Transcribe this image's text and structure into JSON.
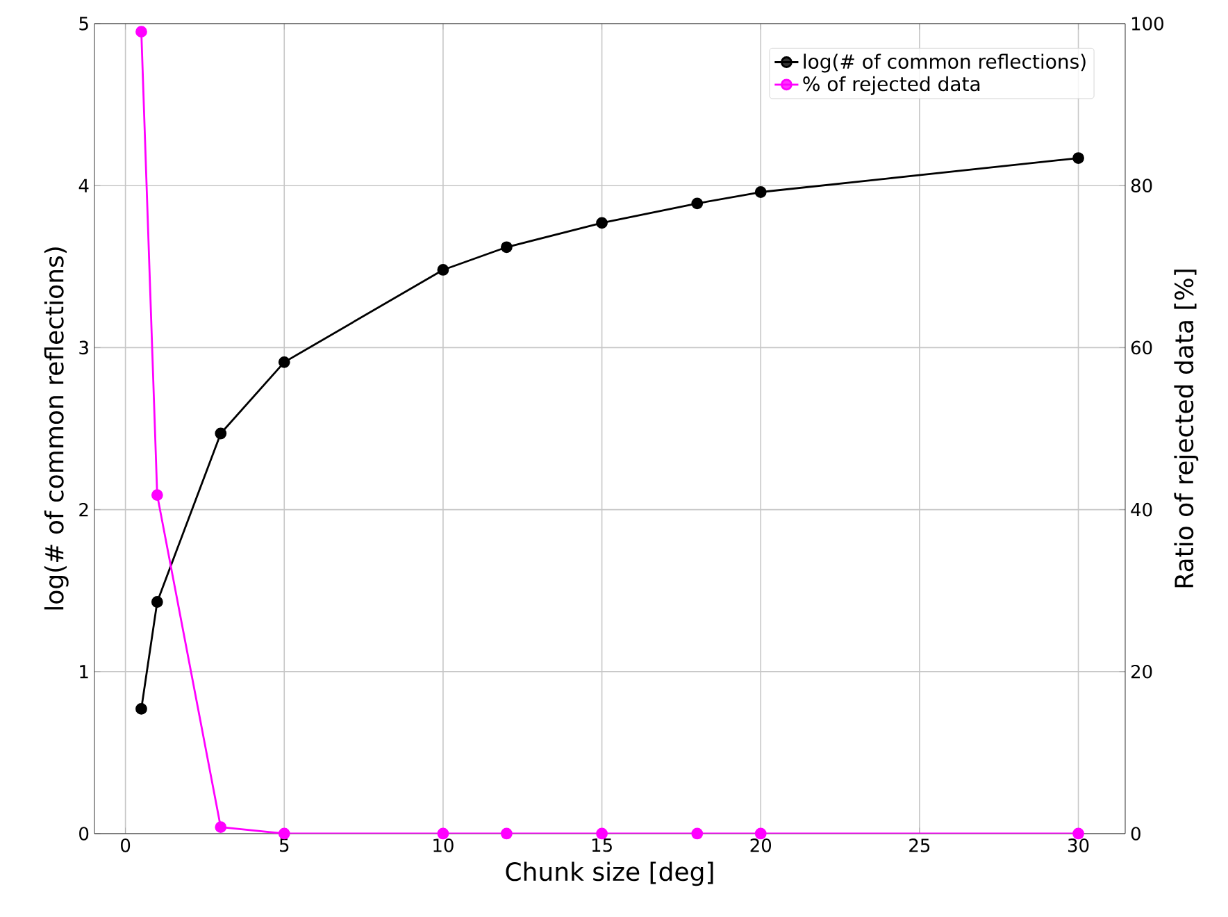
{
  "chart_data": {
    "type": "line",
    "xlabel": "Chunk size [deg]",
    "ylabel": "log(# of common reflections)",
    "y2label": "Ratio of rejected data [%]",
    "x": [
      0.5,
      1,
      3,
      5,
      10,
      12,
      15,
      18,
      20,
      30
    ],
    "series": [
      {
        "name": "log(# of common reflections)",
        "color": "#000000",
        "values": [
          0.77,
          1.43,
          2.47,
          2.91,
          3.48,
          3.62,
          3.77,
          3.89,
          3.96,
          4.17
        ]
      },
      {
        "name": "% of rejected data",
        "color": "#ff00ff",
        "axis": "y2",
        "values": [
          99,
          41.8,
          0.8,
          0,
          0,
          0,
          0,
          0,
          0,
          0
        ]
      }
    ],
    "xlim": [
      -0.975,
      31.475
    ],
    "xticks": [
      0,
      5,
      10,
      15,
      20,
      25,
      30
    ],
    "ylim": [
      0,
      5
    ],
    "yticks": [
      0,
      1,
      2,
      3,
      4,
      5
    ],
    "y2lim": [
      0,
      100
    ],
    "y2ticks": [
      0,
      20,
      40,
      60,
      80,
      100
    ],
    "grid": true,
    "legend": "top right",
    "marker": "circle",
    "line_style": "solid"
  }
}
